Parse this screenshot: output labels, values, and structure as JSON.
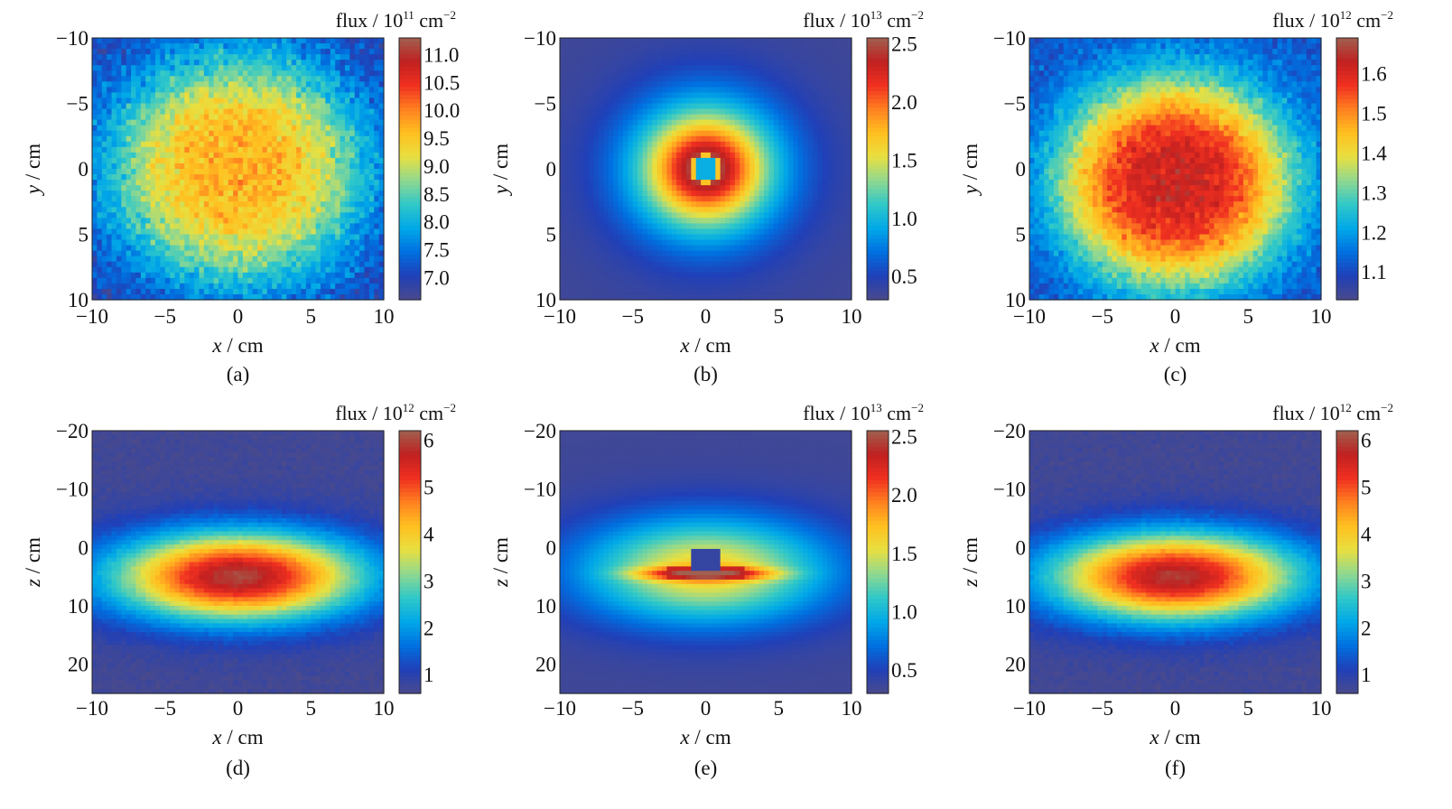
{
  "colors": {
    "colormap": [
      "#4a4a8c",
      "#2040b8",
      "#0070e0",
      "#00a8e8",
      "#30c8c8",
      "#90d890",
      "#e8e040",
      "#ffc020",
      "#ff8020",
      "#f03020",
      "#c02020",
      "#a06050"
    ]
  },
  "chart_data": [
    {
      "type": "heatmap",
      "panel_label": "(a)",
      "xlabel_var": "x",
      "xlabel_unit": " / cm",
      "ylabel_var": "y",
      "ylabel_unit": " / cm",
      "xlim": [
        -10,
        10
      ],
      "ylim": [
        -10,
        10
      ],
      "y_inverted": true,
      "x_ticks": [
        -10,
        -5,
        0,
        5,
        10
      ],
      "y_ticks": [
        -10,
        -5,
        0,
        5,
        10
      ],
      "x_tick_labels": [
        "−10",
        "−5",
        "0",
        "5",
        "10"
      ],
      "y_tick_labels": [
        "−10",
        "−5",
        "0",
        "5",
        "10"
      ],
      "grid": "60x48",
      "colorbar": {
        "label": "flux / 10",
        "exponent": "11",
        "unit": " cm",
        "unit_exp": "−2",
        "range": [
          6.6,
          11.3
        ],
        "ticks": [
          7.0,
          7.5,
          8.0,
          8.5,
          9.0,
          9.5,
          10.0,
          10.5,
          11.0
        ],
        "tick_labels": [
          "7.0",
          "7.5",
          "8.0",
          "8.5",
          "9.0",
          "9.5",
          "10.0",
          "10.5",
          "11.0"
        ]
      },
      "field": {
        "kind": "noisy_plateau",
        "center": [
          0,
          0
        ],
        "sigma": [
          9,
          9
        ],
        "peak": 9.7,
        "base": 7.0,
        "noise": 0.55
      }
    },
    {
      "type": "heatmap",
      "panel_label": "(b)",
      "xlabel_var": "x",
      "xlabel_unit": " / cm",
      "ylabel_var": "y",
      "ylabel_unit": " / cm",
      "xlim": [
        -10,
        10
      ],
      "ylim": [
        -10,
        10
      ],
      "y_inverted": true,
      "x_ticks": [
        -10,
        -5,
        0,
        5,
        10
      ],
      "y_ticks": [
        -10,
        -5,
        0,
        5,
        10
      ],
      "x_tick_labels": [
        "−10",
        "−5",
        "0",
        "5",
        "10"
      ],
      "y_tick_labels": [
        "−10",
        "−5",
        "0",
        "5",
        "10"
      ],
      "grid": "60x48",
      "colorbar": {
        "label": "flux / 10",
        "exponent": "13",
        "unit": " cm",
        "unit_exp": "−2",
        "range": [
          0.3,
          2.55
        ],
        "ticks": [
          0.5,
          1.0,
          1.5,
          2.0,
          2.5
        ],
        "tick_labels": [
          "0.5",
          "1.0",
          "1.5",
          "2.0",
          "2.5"
        ]
      },
      "field": {
        "kind": "ring",
        "center": [
          0,
          0
        ],
        "hole_radius": 1.1,
        "peak": 2.45,
        "base": 0.35,
        "decay": 3.6
      }
    },
    {
      "type": "heatmap",
      "panel_label": "(c)",
      "xlabel_var": "x",
      "xlabel_unit": " / cm",
      "ylabel_var": "y",
      "ylabel_unit": " / cm",
      "xlim": [
        -10,
        10
      ],
      "ylim": [
        -10,
        10
      ],
      "y_inverted": true,
      "x_ticks": [
        -10,
        -5,
        0,
        5,
        10
      ],
      "y_ticks": [
        -10,
        -5,
        0,
        5,
        10
      ],
      "x_tick_labels": [
        "−10",
        "−5",
        "0",
        "5",
        "10"
      ],
      "y_tick_labels": [
        "−10",
        "−5",
        "0",
        "5",
        "10"
      ],
      "grid": "60x48",
      "colorbar": {
        "label": "flux / 10",
        "exponent": "12",
        "unit": " cm",
        "unit_exp": "−2",
        "range": [
          1.03,
          1.69
        ],
        "ticks": [
          1.1,
          1.2,
          1.3,
          1.4,
          1.5,
          1.6
        ],
        "tick_labels": [
          "1.1",
          "1.2",
          "1.3",
          "1.4",
          "1.5",
          "1.6"
        ]
      },
      "field": {
        "kind": "noisy_plateau",
        "center": [
          0,
          1
        ],
        "sigma": [
          8,
          8
        ],
        "peak": 1.62,
        "base": 1.12,
        "noise": 0.06
      }
    },
    {
      "type": "heatmap",
      "panel_label": "(d)",
      "xlabel_var": "x",
      "xlabel_unit": " / cm",
      "ylabel_var": "z",
      "ylabel_unit": " / cm",
      "xlim": [
        -10,
        10
      ],
      "ylim": [
        -20,
        25
      ],
      "y_inverted": true,
      "x_ticks": [
        -10,
        -5,
        0,
        5,
        10
      ],
      "y_ticks": [
        -20,
        -10,
        0,
        10,
        20
      ],
      "x_tick_labels": [
        "−10",
        "−5",
        "0",
        "5",
        "10"
      ],
      "y_tick_labels": [
        "−20",
        "−10",
        "0",
        "10",
        "20"
      ],
      "grid": "60x60",
      "colorbar": {
        "label": "flux / 10",
        "exponent": "12",
        "unit": " cm",
        "unit_exp": "−2",
        "range": [
          0.6,
          6.2
        ],
        "ticks": [
          1,
          2,
          3,
          4,
          5,
          6
        ],
        "tick_labels": [
          "1",
          "2",
          "3",
          "4",
          "5",
          "6"
        ]
      },
      "field": {
        "kind": "ellipse",
        "center": [
          0,
          5
        ],
        "sigma": [
          7.5,
          7.5
        ],
        "peak": 6.0,
        "base": 0.7,
        "noise": 0.15
      }
    },
    {
      "type": "heatmap",
      "panel_label": "(e)",
      "xlabel_var": "x",
      "xlabel_unit": " / cm",
      "ylabel_var": "z",
      "ylabel_unit": " / cm",
      "xlim": [
        -10,
        10
      ],
      "ylim": [
        -20,
        25
      ],
      "y_inverted": true,
      "x_ticks": [
        -10,
        -5,
        0,
        5,
        10
      ],
      "y_ticks": [
        -20,
        -10,
        0,
        10,
        20
      ],
      "x_tick_labels": [
        "−10",
        "−5",
        "0",
        "5",
        "10"
      ],
      "y_tick_labels": [
        "−20",
        "−10",
        "0",
        "10",
        "20"
      ],
      "grid": "60x60",
      "colorbar": {
        "label": "flux / 10",
        "exponent": "13",
        "unit": " cm",
        "unit_exp": "−2",
        "range": [
          0.3,
          2.55
        ],
        "ticks": [
          0.5,
          1.0,
          1.5,
          2.0,
          2.5
        ],
        "tick_labels": [
          "0.5",
          "1.0",
          "1.5",
          "2.0",
          "2.5"
        ]
      },
      "field": {
        "kind": "slab",
        "center": [
          0,
          4
        ],
        "hole": [
          [
            -1,
            1
          ],
          [
            0.5,
            4
          ]
        ],
        "peak": 2.4,
        "base": 0.35
      }
    },
    {
      "type": "heatmap",
      "panel_label": "(f)",
      "xlabel_var": "x",
      "xlabel_unit": " / cm",
      "ylabel_var": "z",
      "ylabel_unit": " / cm",
      "xlim": [
        -10,
        10
      ],
      "ylim": [
        -20,
        25
      ],
      "y_inverted": true,
      "x_ticks": [
        -10,
        -5,
        0,
        5,
        10
      ],
      "y_ticks": [
        -20,
        -10,
        0,
        10,
        20
      ],
      "x_tick_labels": [
        "−10",
        "−5",
        "0",
        "5",
        "10"
      ],
      "y_tick_labels": [
        "−20",
        "−10",
        "0",
        "10",
        "20"
      ],
      "grid": "60x60",
      "colorbar": {
        "label": "flux / 10",
        "exponent": "12",
        "unit": " cm",
        "unit_exp": "−2",
        "range": [
          0.6,
          6.2
        ],
        "ticks": [
          1,
          2,
          3,
          4,
          5,
          6
        ],
        "tick_labels": [
          "1",
          "2",
          "3",
          "4",
          "5",
          "6"
        ]
      },
      "field": {
        "kind": "ellipse",
        "center": [
          0,
          5
        ],
        "sigma": [
          7.5,
          7.5
        ],
        "peak": 5.9,
        "base": 0.7,
        "noise": 0.15
      }
    }
  ]
}
